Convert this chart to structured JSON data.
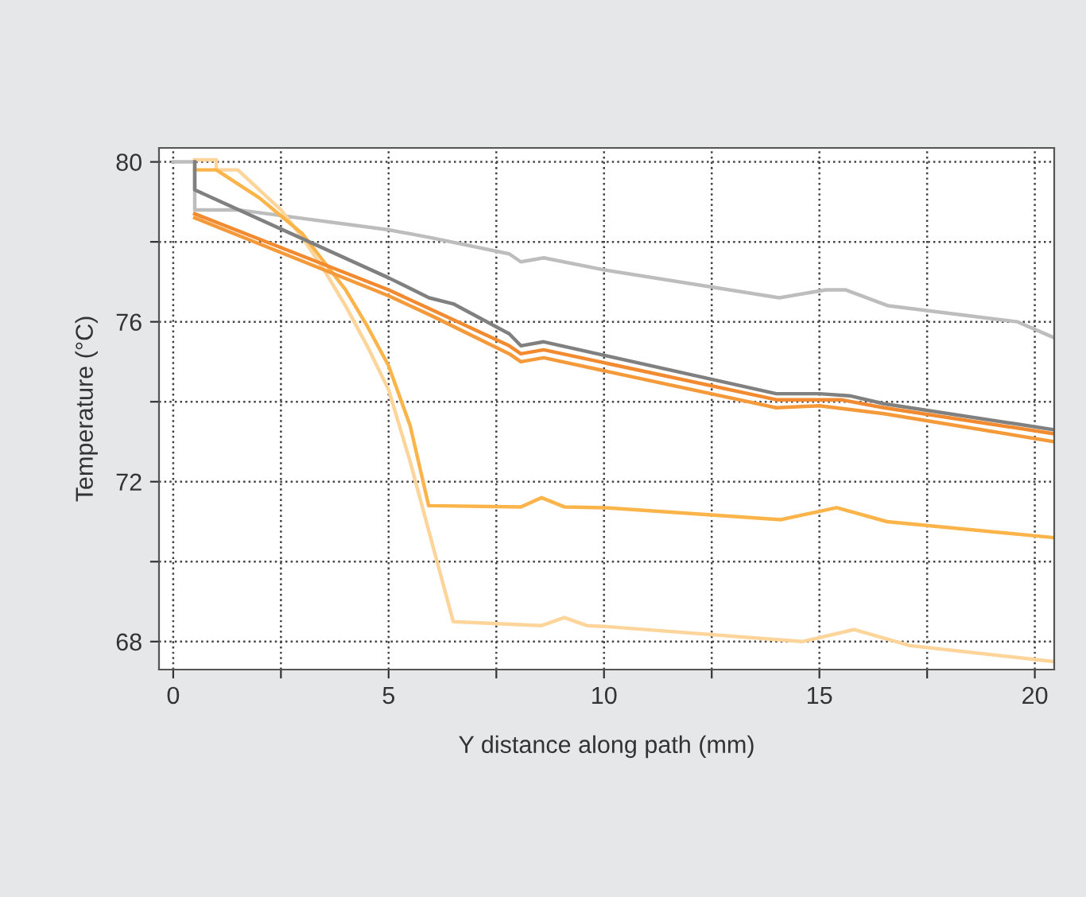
{
  "chart_data": {
    "type": "line",
    "xlabel": "Y distance along path (mm)",
    "ylabel": "Temperature (°C)",
    "xlim": [
      -0.33,
      20.45
    ],
    "ylim": [
      67.3,
      80.35
    ],
    "xticks": [
      0,
      {
        "value": 2.5,
        "label": null
      },
      5,
      {
        "value": 7.5,
        "label": null
      },
      10,
      {
        "value": 12.5,
        "label": null
      },
      15,
      {
        "value": 17.5,
        "label": null
      },
      20
    ],
    "yticks": [
      68,
      {
        "value": 70,
        "label": null
      },
      72,
      {
        "value": 74,
        "label": null
      },
      76,
      {
        "value": 78,
        "label": null
      },
      80
    ],
    "grid": true,
    "line_style": "solid",
    "marker": "none",
    "series": [
      {
        "color": "#bdbdbd",
        "x": [
          0,
          0.5,
          0.5,
          1.5,
          5,
          6,
          7.8,
          8.07,
          8.6,
          10,
          14.07,
          15.15,
          15.6,
          16.6,
          19.6,
          20.45
        ],
        "values": [
          80,
          80,
          78.8,
          78.8,
          78.3,
          78.1,
          77.7,
          77.5,
          77.6,
          77.3,
          76.6,
          76.8,
          76.8,
          76.4,
          76.0,
          75.6
        ]
      },
      {
        "color": "#fdd49a",
        "x": [
          0.5,
          1.0,
          1.0,
          1.5,
          2.5,
          3.0,
          3.5,
          4.0,
          4.5,
          5.0,
          5.5,
          6.0,
          6.5,
          8.55,
          9.08,
          9.6,
          10,
          14.6,
          15.8,
          17.1,
          20.45
        ],
        "values": [
          80.05,
          80.05,
          79.8,
          79.8,
          78.8,
          78.1,
          77.3,
          76.4,
          75.4,
          74.3,
          72.5,
          70.5,
          68.5,
          68.4,
          68.6,
          68.4,
          68.38,
          68.0,
          68.3,
          67.9,
          67.5
        ]
      },
      {
        "color": "#fbb44a",
        "x": [
          0.5,
          1.0,
          2.0,
          3.0,
          3.5,
          4.0,
          4.5,
          5.0,
          5.5,
          5.93,
          8.07,
          8.55,
          9.08,
          10,
          14.1,
          15.4,
          16.57,
          20.45
        ],
        "values": [
          79.8,
          79.8,
          79.1,
          78.2,
          77.5,
          76.8,
          75.9,
          74.9,
          73.4,
          71.4,
          71.37,
          71.6,
          71.37,
          71.35,
          71.05,
          71.35,
          71.0,
          70.6
        ]
      },
      {
        "color": "#808080",
        "x": [
          0.5,
          0.5,
          5,
          5.94,
          6.5,
          7.8,
          8.07,
          8.6,
          14,
          15,
          15.7,
          16.5,
          20.45
        ],
        "values": [
          80,
          79.3,
          77.1,
          76.6,
          76.45,
          75.7,
          75.4,
          75.5,
          74.2,
          74.2,
          74.15,
          73.95,
          73.3
        ]
      },
      {
        "color": "#f28a30",
        "x": [
          0.5,
          5,
          6,
          7.8,
          8.07,
          8.6,
          14,
          15.5,
          16.5,
          20.45
        ],
        "values": [
          78.7,
          76.8,
          76.3,
          75.4,
          75.2,
          75.3,
          74.05,
          74.05,
          73.85,
          73.2
        ]
      },
      {
        "color": "#f59a3a",
        "x": [
          0.5,
          5,
          6,
          7.8,
          8.07,
          8.6,
          14,
          15,
          16.5,
          20.45
        ],
        "values": [
          78.6,
          76.65,
          76.15,
          75.2,
          75.0,
          75.1,
          73.85,
          73.9,
          73.7,
          73.0
        ]
      }
    ]
  }
}
